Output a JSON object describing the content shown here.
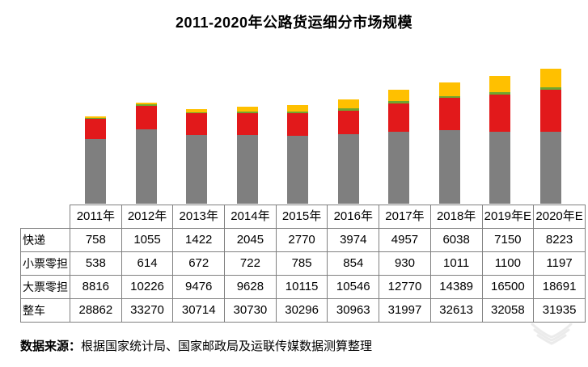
{
  "title": "2011-2020年公路货运细分市场规模",
  "chart_data": {
    "type": "bar",
    "stacked": true,
    "title": "2011-2020年公路货运细分市场规模",
    "categories": [
      "2011年",
      "2012年",
      "2013年",
      "2014年",
      "2015年",
      "2016年",
      "2017年",
      "2018年",
      "2019年E",
      "2020年E"
    ],
    "series": [
      {
        "name": "快递",
        "color": "#FFC000",
        "values": [
          758,
          1055,
          1422,
          2045,
          2770,
          3974,
          4957,
          6038,
          7150,
          8223
        ]
      },
      {
        "name": "小票零担",
        "color": "#6FA62F",
        "values": [
          538,
          614,
          672,
          722,
          785,
          854,
          930,
          1011,
          1100,
          1197
        ]
      },
      {
        "name": "大票零担",
        "color": "#E2191B",
        "values": [
          8816,
          10226,
          9476,
          9628,
          10115,
          10546,
          12770,
          14389,
          16500,
          18691
        ]
      },
      {
        "name": "整车",
        "color": "#7F7F7F",
        "values": [
          28862,
          33270,
          30714,
          30730,
          30296,
          30963,
          31997,
          32613,
          32058,
          31935
        ]
      }
    ],
    "xlabel": "",
    "ylabel": "",
    "ylim": [
      0,
      66960
    ],
    "axis_hidden": true,
    "grid": false,
    "legend_position": "table-below"
  },
  "table": {
    "header": [
      "2011年",
      "2012年",
      "2013年",
      "2014年",
      "2015年",
      "2016年",
      "2017年",
      "2018年",
      "2019年E",
      "2020年E"
    ],
    "rows": [
      {
        "label": "快递",
        "values": [
          758,
          1055,
          1422,
          2045,
          2770,
          3974,
          4957,
          6038,
          7150,
          8223
        ]
      },
      {
        "label": "小票零担",
        "values": [
          538,
          614,
          672,
          722,
          785,
          854,
          930,
          1011,
          1100,
          1197
        ]
      },
      {
        "label": "大票零担",
        "values": [
          8816,
          10226,
          9476,
          9628,
          10115,
          10546,
          12770,
          14389,
          16500,
          18691
        ]
      },
      {
        "label": "整车",
        "values": [
          28862,
          33270,
          30714,
          30730,
          30296,
          30963,
          31997,
          32613,
          32058,
          31935
        ]
      }
    ]
  },
  "footer": {
    "source_label": "数据来源：",
    "source_text": "根据国家统计局、国家邮政局及运联传媒数据测算整理"
  },
  "colors": {
    "express": "#FFC000",
    "small_ltl": "#6FA62F",
    "large_ltl": "#E2191B",
    "truckload": "#7F7F7F",
    "table_border": "#808080",
    "watermark": "#EBEBEB"
  }
}
